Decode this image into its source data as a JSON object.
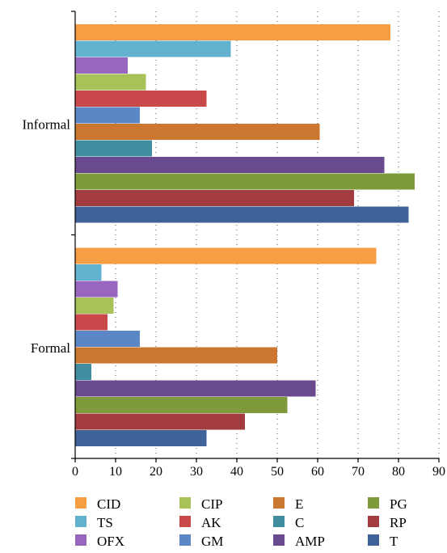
{
  "chart_data": {
    "type": "bar",
    "orientation": "horizontal",
    "categories": [
      "Informal",
      "Formal"
    ],
    "series": [
      {
        "name": "CID",
        "color": "#F79E45",
        "values": [
          78,
          74.5
        ]
      },
      {
        "name": "TS",
        "color": "#62B1CF",
        "values": [
          38.5,
          6.5
        ]
      },
      {
        "name": "OFX",
        "color": "#9865BF",
        "values": [
          13,
          10.5
        ]
      },
      {
        "name": "CIP",
        "color": "#A8C257",
        "values": [
          17.5,
          9.5
        ]
      },
      {
        "name": "AK",
        "color": "#C9484A",
        "values": [
          32.5,
          8
        ]
      },
      {
        "name": "GM",
        "color": "#5B87C7",
        "values": [
          16,
          16
        ]
      },
      {
        "name": "E",
        "color": "#CB7730",
        "values": [
          60.5,
          50
        ]
      },
      {
        "name": "C",
        "color": "#3F8D9E",
        "values": [
          19,
          4
        ]
      },
      {
        "name": "AMP",
        "color": "#6A4A8E",
        "values": [
          76.5,
          59.5
        ]
      },
      {
        "name": "PG",
        "color": "#7F9A3B",
        "values": [
          84,
          52.5
        ]
      },
      {
        "name": "RP",
        "color": "#A33C3E",
        "values": [
          69,
          42
        ]
      },
      {
        "name": "T",
        "color": "#3F6299",
        "values": [
          82.5,
          32.5
        ]
      }
    ],
    "xlim": [
      0,
      90
    ],
    "xticks": [
      0,
      10,
      20,
      30,
      40,
      50,
      60,
      70,
      80,
      90
    ],
    "grid": "vertical dotted",
    "legend_position": "bottom",
    "legend_columns": [
      [
        "CID",
        "TS",
        "OFX"
      ],
      [
        "CIP",
        "AK",
        "GM"
      ],
      [
        "E",
        "C",
        "AMP"
      ],
      [
        "PG",
        "RP",
        "T"
      ]
    ]
  }
}
